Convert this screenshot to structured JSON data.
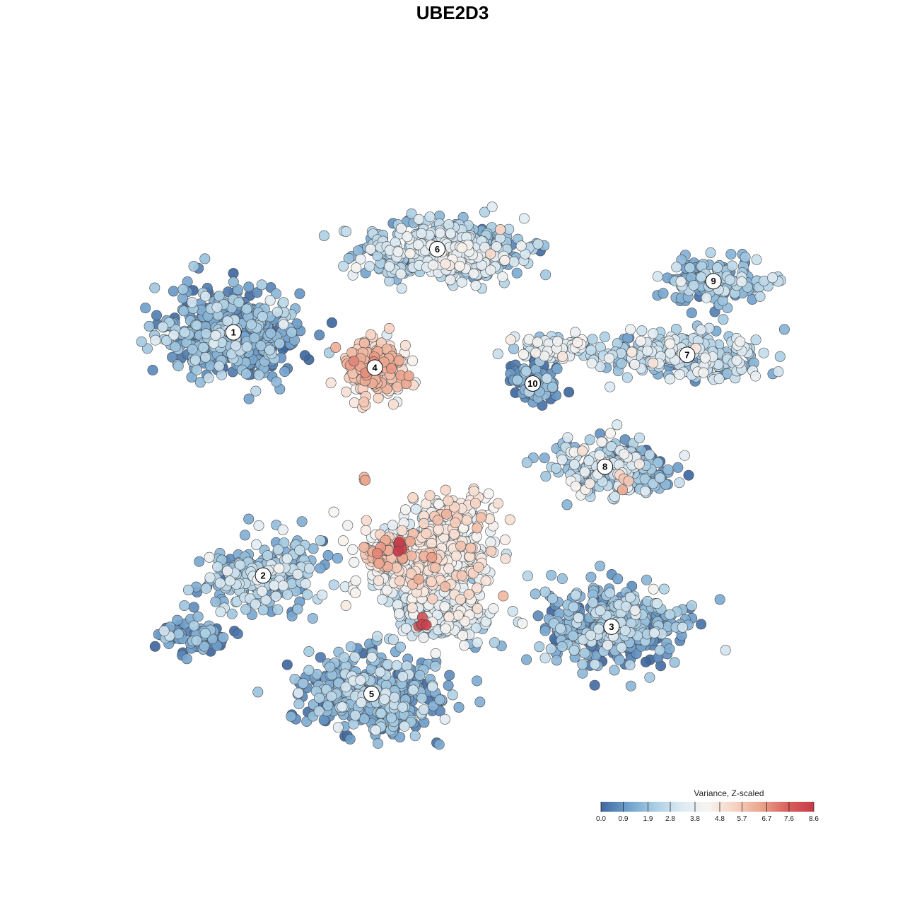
{
  "chart_data": {
    "type": "scatter",
    "title": "UBE2D3",
    "xlabel": "",
    "ylabel": "",
    "grid": false,
    "axes_visible": false,
    "x_range": [
      0,
      100
    ],
    "y_range": [
      0,
      100
    ],
    "color_scale": {
      "title": "Variance, Z-scaled",
      "min": 0.0,
      "max": 8.6,
      "ticks": [
        "0.0",
        "0.9",
        "1.9",
        "2.8",
        "3.8",
        "4.8",
        "5.7",
        "6.7",
        "7.6",
        "8.6"
      ],
      "palette": [
        "#3f68a0",
        "#6e9fcc",
        "#a8cde3",
        "#dbe9f2",
        "#f7f4f1",
        "#f7d4c4",
        "#eba58d",
        "#d9605e",
        "#c73a4a"
      ],
      "legend_position": "bottom-right"
    },
    "clusters": [
      {
        "label": "1",
        "x": 14.0,
        "y": 68.5,
        "sx": 9.0,
        "sy": 6.5,
        "n": 520,
        "value": 1.2
      },
      {
        "label": "2",
        "x": 18.5,
        "y": 30.5,
        "sx": 8.0,
        "sy": 5.5,
        "n": 240,
        "value": 1.9
      },
      {
        "label": "3",
        "x": 71.5,
        "y": 22.5,
        "sx": 9.5,
        "sy": 5.5,
        "n": 430,
        "value": 1.5
      },
      {
        "label": "4",
        "x": 35.5,
        "y": 63.0,
        "sx": 4.0,
        "sy": 4.3,
        "n": 220,
        "value": 5.1
      },
      {
        "label": "5",
        "x": 35.0,
        "y": 12.0,
        "sx": 9.5,
        "sy": 5.5,
        "n": 480,
        "value": 1.3
      },
      {
        "label": "6",
        "x": 45.0,
        "y": 81.5,
        "sx": 12.0,
        "sy": 4.0,
        "n": 360,
        "value": 2.2
      },
      {
        "label": "7",
        "x": 83.0,
        "y": 65.0,
        "sx": 10.5,
        "sy": 3.2,
        "n": 260,
        "value": 2.5
      },
      {
        "label": "8",
        "x": 70.5,
        "y": 47.5,
        "sx": 8.0,
        "sy": 4.0,
        "n": 200,
        "value": 2.6
      },
      {
        "label": "9",
        "x": 87.0,
        "y": 76.5,
        "sx": 7.0,
        "sy": 3.2,
        "n": 140,
        "value": 1.7
      },
      {
        "label": "10",
        "x": 59.5,
        "y": 60.5,
        "sx": 3.2,
        "sy": 3.2,
        "n": 90,
        "value": 1.1
      },
      {
        "label": "",
        "x": 44.0,
        "y": 33.0,
        "sx": 9.0,
        "sy": 5.5,
        "n": 480,
        "value": 3.9
      },
      {
        "label": "",
        "x": 46.0,
        "y": 24.0,
        "sx": 7.0,
        "sy": 3.5,
        "n": 200,
        "value": 2.9
      },
      {
        "label": "",
        "x": 48.5,
        "y": 40.5,
        "sx": 6.0,
        "sy": 2.5,
        "n": 90,
        "value": 4.2
      },
      {
        "label": "",
        "x": 74.5,
        "y": 47.0,
        "sx": 4.5,
        "sy": 2.5,
        "n": 140,
        "value": 0.6
      },
      {
        "label": "",
        "x": 63.0,
        "y": 66.0,
        "sx": 6.0,
        "sy": 2.0,
        "n": 90,
        "value": 2.8
      },
      {
        "label": "",
        "x": 7.5,
        "y": 21.5,
        "sx": 5.5,
        "sy": 2.5,
        "n": 70,
        "value": 1.0
      },
      {
        "label": "",
        "x": 50.0,
        "y": 80.0,
        "sx": 7.0,
        "sy": 3.0,
        "n": 120,
        "value": 2.9
      }
    ],
    "hotspots": [
      {
        "x": 35.5,
        "y": 62.5,
        "sx": 3.2,
        "sy": 3.6,
        "n": 70,
        "value": 5.4
      },
      {
        "x": 37.0,
        "y": 33.5,
        "sx": 3.0,
        "sy": 2.8,
        "n": 45,
        "value": 6.0
      },
      {
        "x": 39.0,
        "y": 35.0,
        "sx": 1.2,
        "sy": 0.8,
        "n": 6,
        "value": 8.2
      },
      {
        "x": 42.5,
        "y": 23.0,
        "sx": 0.8,
        "sy": 0.8,
        "n": 6,
        "value": 7.9
      },
      {
        "x": 73.5,
        "y": 45.5,
        "sx": 1.2,
        "sy": 1.2,
        "n": 4,
        "value": 5.2
      },
      {
        "x": 34.0,
        "y": 45.5,
        "sx": 0.4,
        "sy": 0.4,
        "n": 3,
        "value": 5.9
      }
    ]
  }
}
